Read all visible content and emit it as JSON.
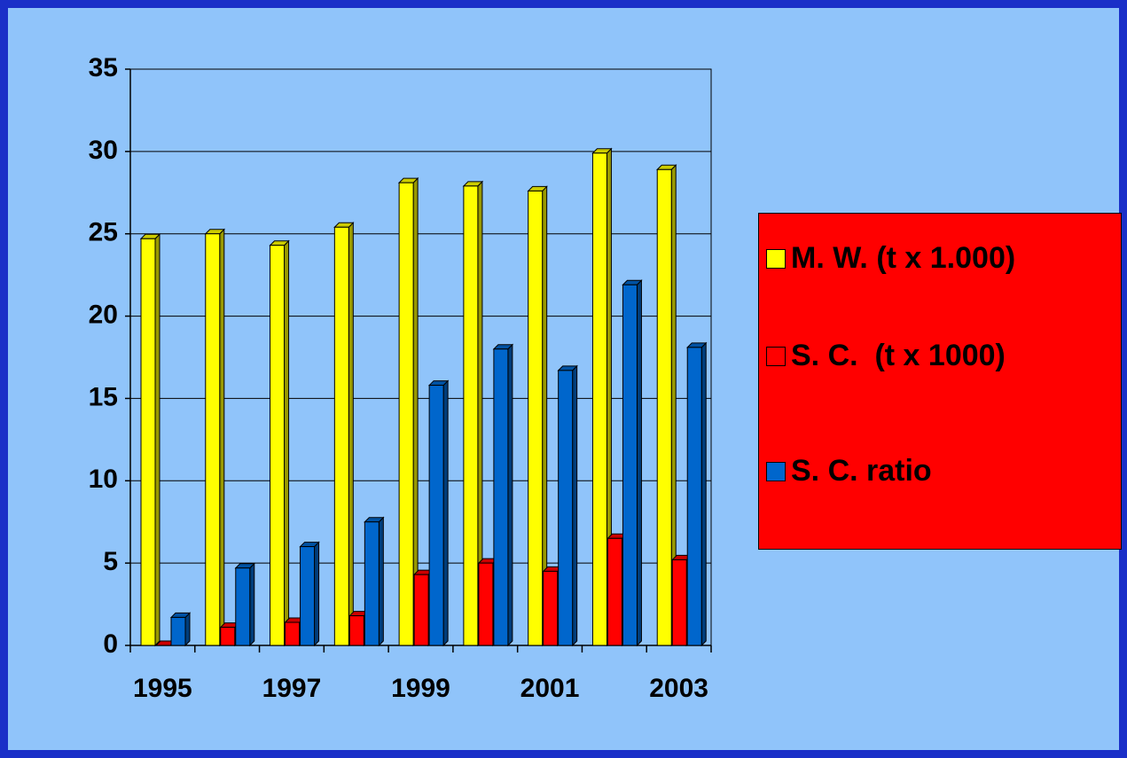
{
  "chart_data": {
    "type": "bar",
    "categories": [
      "1995",
      null,
      "1997",
      null,
      "1999",
      null,
      "2001",
      null,
      "2003"
    ],
    "series": [
      {
        "name": "M. W. (t x 1.000)",
        "color": "#ffff00",
        "values": [
          24.7,
          25.0,
          24.3,
          25.4,
          28.1,
          27.9,
          27.6,
          29.9,
          28.9
        ]
      },
      {
        "name": "S. C.  (t x 1000)",
        "color": "#ff0000",
        "values": [
          0,
          1.1,
          1.4,
          1.8,
          4.3,
          5.0,
          4.5,
          6.5,
          5.2
        ]
      },
      {
        "name": "S. C. ratio",
        "color": "#0066cc",
        "values": [
          1.7,
          4.7,
          6.0,
          7.5,
          15.8,
          18.0,
          16.7,
          21.9,
          18.1
        ]
      }
    ],
    "ylim": [
      0,
      35
    ],
    "yticks": [
      0,
      5,
      10,
      15,
      20,
      25,
      30,
      35
    ],
    "grid": true,
    "legend": "right"
  }
}
